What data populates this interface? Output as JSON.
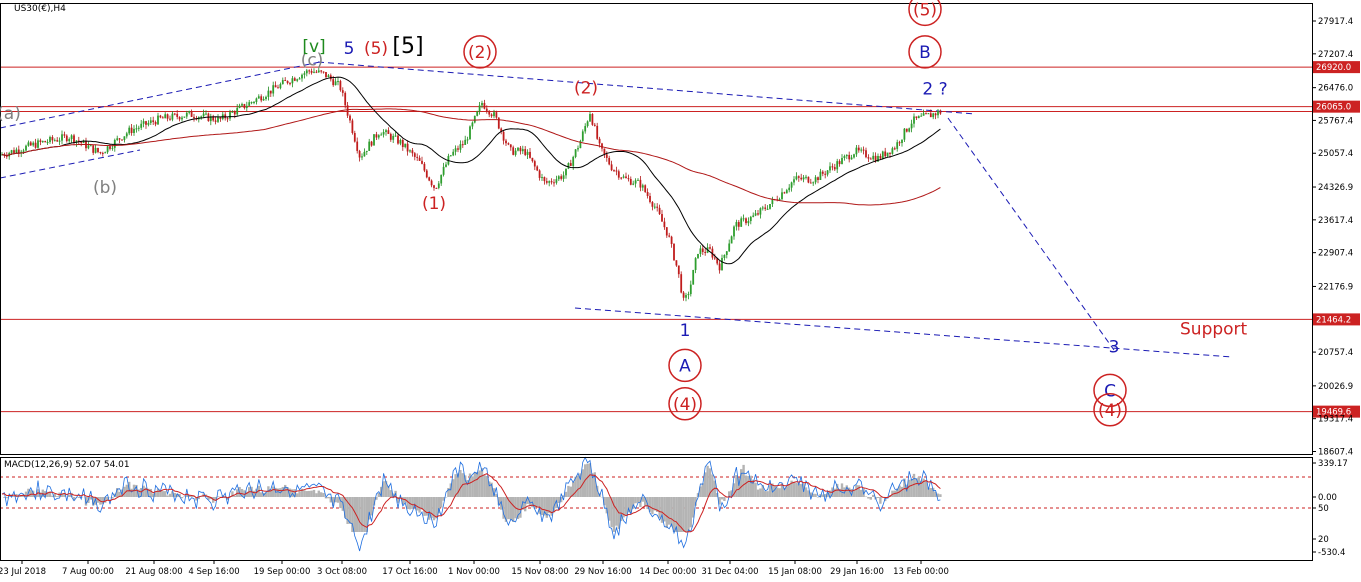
{
  "chart_data": {
    "type": "candlestick",
    "title": "US30(€),H4",
    "indicator_label": "MACD(12,26,9) 52.07 54.01",
    "price_ticks": [
      "27917.4",
      "27207.4",
      "26476.0",
      "25767.4",
      "25057.4",
      "24326.9",
      "23617.4",
      "22907.4",
      "22176.9",
      "20757.4",
      "20026.9",
      "19317.4",
      "18607.4"
    ],
    "macd_ticks": [
      "339.17",
      "0.00",
      "50",
      "20",
      "-530.4"
    ],
    "time_ticks": [
      "23 Jul 2018",
      "7 Aug 00:00",
      "21 Aug 08:00",
      "4 Sep 16:00",
      "19 Sep 00:00",
      "3 Oct 08:00",
      "17 Oct 16:00",
      "1 Nov 00:00",
      "15 Nov 08:00",
      "29 Nov 16:00",
      "14 Dec 00:00",
      "31 Dec 04:00",
      "15 Jan 08:00",
      "29 Jan 16:00",
      "13 Feb 00:00"
    ],
    "horizontal_levels": [
      {
        "value": 26920.0,
        "label": "26920.0"
      },
      {
        "value": 26065.0,
        "label": "26065.0"
      },
      {
        "value": 25960.0,
        "label": ""
      },
      {
        "value": 21464.2,
        "label": "21464.2"
      },
      {
        "value": 19469.6,
        "label": "19469.6"
      }
    ],
    "price_path": [
      [
        0,
        25020
      ],
      [
        40,
        25280
      ],
      [
        70,
        25420
      ],
      [
        100,
        25060
      ],
      [
        130,
        25550
      ],
      [
        160,
        25800
      ],
      [
        190,
        25900
      ],
      [
        220,
        25780
      ],
      [
        250,
        26150
      ],
      [
        270,
        26400
      ],
      [
        290,
        26650
      ],
      [
        310,
        26850
      ],
      [
        325,
        26760
      ],
      [
        340,
        26500
      ],
      [
        352,
        25600
      ],
      [
        360,
        24980
      ],
      [
        380,
        25550
      ],
      [
        400,
        25300
      ],
      [
        420,
        24850
      ],
      [
        435,
        24300
      ],
      [
        450,
        25000
      ],
      [
        465,
        25300
      ],
      [
        482,
        26150
      ],
      [
        495,
        25850
      ],
      [
        510,
        25100
      ],
      [
        525,
        25100
      ],
      [
        545,
        24400
      ],
      [
        565,
        24600
      ],
      [
        580,
        25300
      ],
      [
        590,
        25950
      ],
      [
        600,
        25150
      ],
      [
        612,
        24750
      ],
      [
        625,
        24500
      ],
      [
        640,
        24400
      ],
      [
        655,
        23900
      ],
      [
        668,
        23300
      ],
      [
        678,
        22500
      ],
      [
        684,
        21800
      ],
      [
        690,
        22150
      ],
      [
        698,
        22950
      ],
      [
        710,
        22950
      ],
      [
        720,
        22600
      ],
      [
        735,
        23500
      ],
      [
        755,
        23700
      ],
      [
        775,
        24050
      ],
      [
        795,
        24500
      ],
      [
        815,
        24500
      ],
      [
        835,
        24800
      ],
      [
        855,
        25100
      ],
      [
        878,
        24950
      ],
      [
        895,
        25200
      ],
      [
        912,
        25750
      ],
      [
        925,
        25850
      ],
      [
        940,
        25950
      ]
    ],
    "wave_labels": [
      {
        "text": "(a)",
        "color": "#808080",
        "x": 9,
        "price": 25800
      },
      {
        "text": "(b)",
        "color": "#808080",
        "x": 105,
        "price": 24200
      },
      {
        "text": "(c)",
        "color": "#808080",
        "x": 312,
        "price": 26950
      },
      {
        "text": "[v]",
        "color": "#1e8a1e",
        "x": 314,
        "price": 27250
      },
      {
        "text": "5",
        "color": "#1b1bb4",
        "x": 349,
        "price": 27200
      },
      {
        "text": "(5)",
        "color": "#cc2222",
        "x": 376,
        "price": 27200
      },
      {
        "text": "[5]",
        "color": "#000000",
        "x": 408,
        "price": 27220
      },
      {
        "text": "(1)",
        "color": "#cc2222",
        "x": 434,
        "price": 23850
      },
      {
        "text": "(2)",
        "color": "#cc2222",
        "x": 586,
        "price": 26350
      },
      {
        "text": "1",
        "color": "#1b1bb4",
        "x": 685,
        "price": 21100
      },
      {
        "text": "2 ?",
        "color": "#1b1bb4",
        "x": 935,
        "price": 26330
      },
      {
        "text": "3",
        "color": "#1b1bb4",
        "x": 1114,
        "price": 20750
      },
      {
        "text": "Support",
        "color": "#cc2222",
        "x": 1180,
        "price": 21140
      }
    ],
    "circled_labels": [
      {
        "text": "(2)",
        "color": "#cc2222",
        "x": 480,
        "price": 27120
      },
      {
        "text": "(5)",
        "color": "#cc2222",
        "x": 925,
        "price": 28040
      },
      {
        "text": "B",
        "color": "#1b1bb4",
        "x": 925,
        "price": 27120
      },
      {
        "text": "A",
        "color": "#1b1bb4",
        "x": 685,
        "price": 20340
      },
      {
        "text": "(4)",
        "color": "#cc2222",
        "x": 685,
        "price": 19510
      },
      {
        "text": "C",
        "color": "#1b1bb4",
        "x": 1110,
        "price": 19800
      },
      {
        "text": "(4)",
        "color": "#cc2222",
        "x": 1110,
        "price": 19380
      }
    ]
  }
}
